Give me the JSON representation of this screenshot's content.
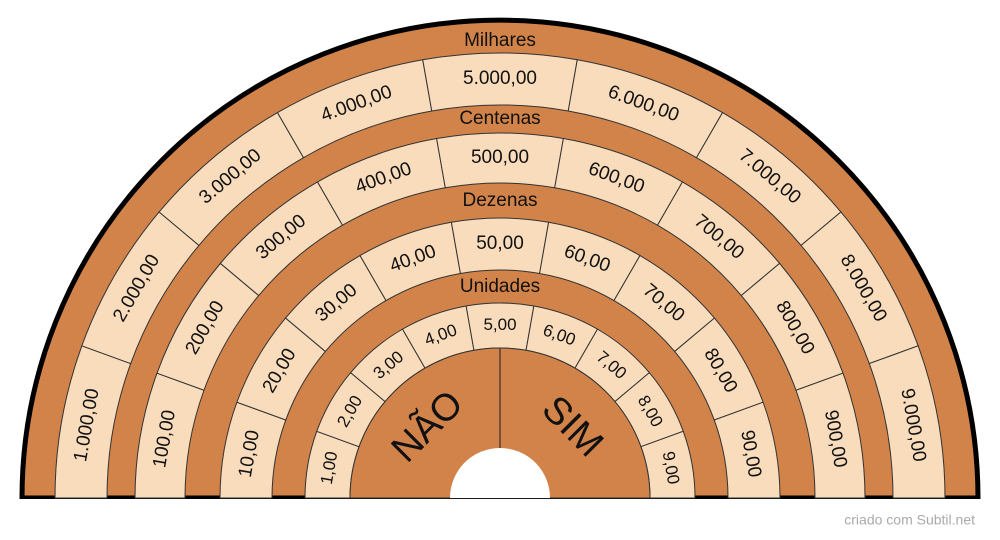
{
  "rings": [
    {
      "label": "Milhares",
      "cells": [
        "1.000,00",
        "2.000,00",
        "3.000,00",
        "4.000,00",
        "5.000,00",
        "6.000,00",
        "7.000,00",
        "8.000,00",
        "9.000,00"
      ]
    },
    {
      "label": "Centenas",
      "cells": [
        "100,00",
        "200,00",
        "300,00",
        "400,00",
        "500,00",
        "600,00",
        "700,00",
        "800,00",
        "900,00"
      ]
    },
    {
      "label": "Dezenas",
      "cells": [
        "10,00",
        "20,00",
        "30,00",
        "40,00",
        "50,00",
        "60,00",
        "70,00",
        "80,00",
        "90,00"
      ]
    },
    {
      "label": "Unidades",
      "cells": [
        "1,00",
        "2,00",
        "3,00",
        "4,00",
        "5,00",
        "6,00",
        "7,00",
        "8,00",
        "9,00"
      ]
    }
  ],
  "center": {
    "left": "NÃO",
    "right": "SIM"
  },
  "footer": "criado com Subtil.net"
}
